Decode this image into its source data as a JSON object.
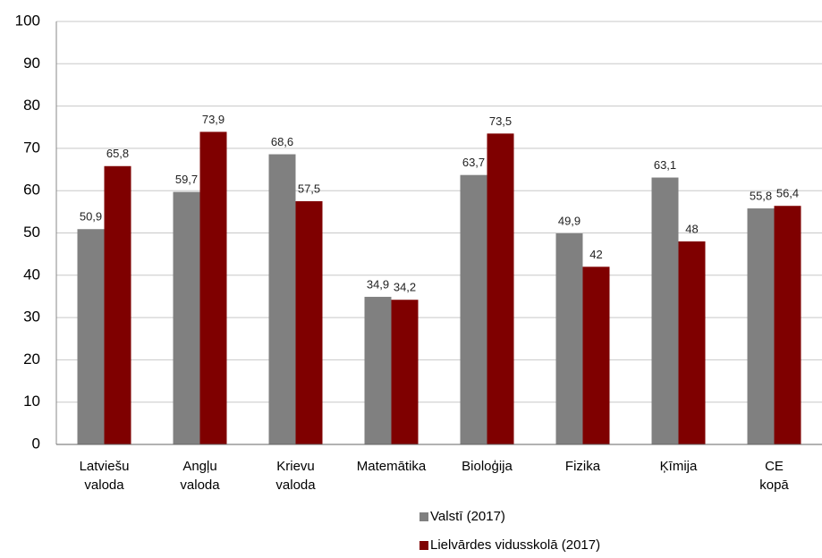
{
  "chart_data": {
    "type": "bar",
    "categories": [
      "Latviešu valoda",
      "Angļu valoda",
      "Krievu valoda",
      "Matemātika",
      "Bioloģija",
      "Fizika",
      "Ķīmija",
      "CE kopā"
    ],
    "series": [
      {
        "name": "Valstī (2017)",
        "color": "#808080",
        "values": [
          50.9,
          59.7,
          68.6,
          34.9,
          63.7,
          49.9,
          63.1,
          55.8
        ],
        "value_labels": [
          "50,9",
          "59,7",
          "68,6",
          "34,9",
          "63,7",
          "49,9",
          "63,1",
          "55,8"
        ]
      },
      {
        "name": "Lielvārdes vidusskolā (2017)",
        "color": "#7f0000",
        "values": [
          65.8,
          73.9,
          57.5,
          34.2,
          73.5,
          42,
          48,
          56.4
        ],
        "value_labels": [
          "65,8",
          "73,9",
          "57,5",
          "34,2",
          "73,5",
          "42",
          "48",
          "56,4"
        ]
      }
    ],
    "ylim": [
      0,
      100
    ],
    "yticks": [
      0,
      10,
      20,
      30,
      40,
      50,
      60,
      70,
      80,
      90,
      100
    ],
    "grid": true,
    "legend": "bottom"
  }
}
